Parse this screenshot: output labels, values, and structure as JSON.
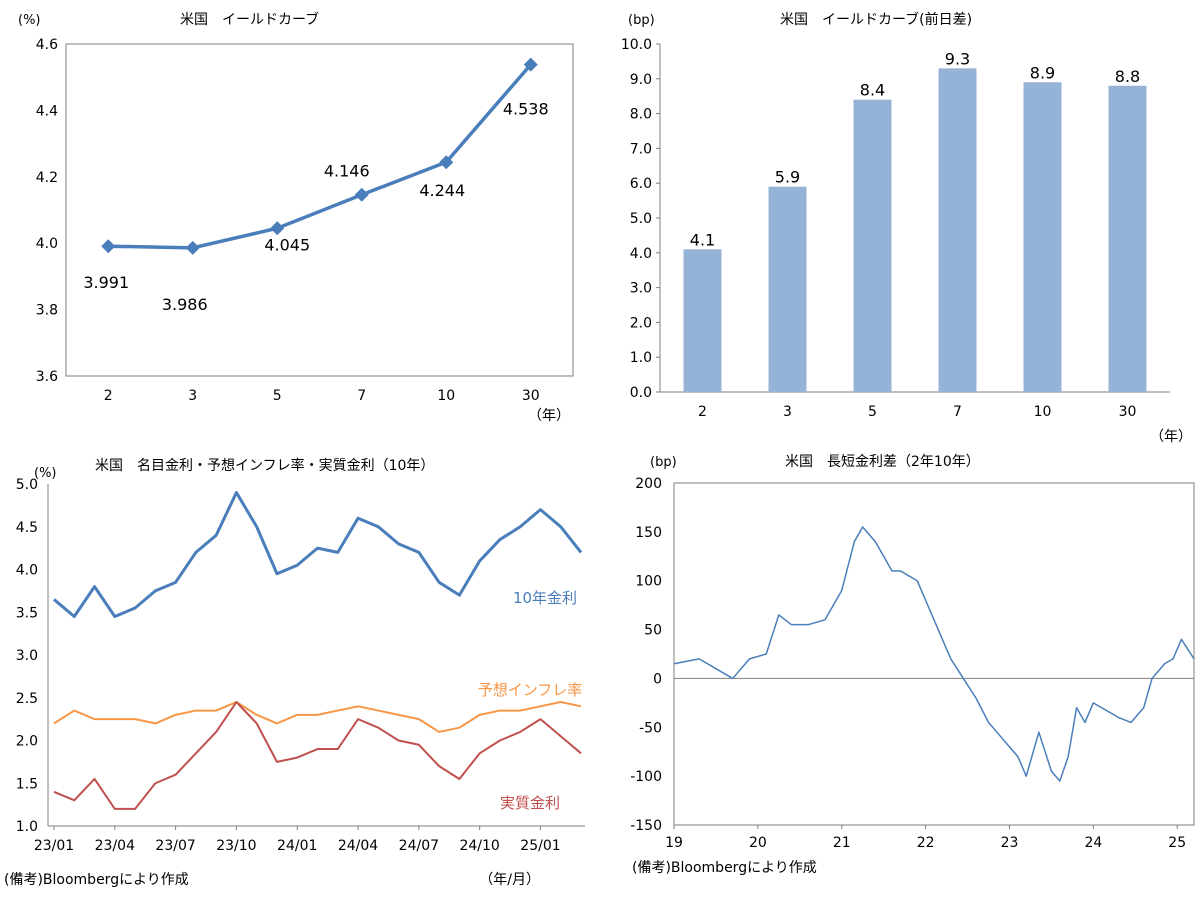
{
  "panels": {
    "yield_curve": {
      "title": "米国　イールドカーブ",
      "unit": "(%)",
      "x_unit": "（年）"
    },
    "yield_change": {
      "title": "米国　イールドカーブ(前日差)",
      "unit": "(bp)",
      "x_unit": "（年）"
    },
    "rates": {
      "title": "米国　名目金利・予想インフレ率・実質金利（10年）",
      "unit": "(%)",
      "x_unit": "（年/月）",
      "source": "(備考)Bloombergにより作成"
    },
    "spread": {
      "title": "米国　長短金利差（2年10年）",
      "unit": "(bp)",
      "source": "(備考)Bloombergにより作成"
    }
  },
  "chart_data": [
    {
      "id": "yield_curve",
      "type": "line",
      "categories": [
        "2",
        "3",
        "5",
        "7",
        "10",
        "30"
      ],
      "series": [
        {
          "values": [
            3.991,
            3.986,
            4.045,
            4.146,
            4.244,
            4.538
          ],
          "color": "#4a7ebb"
        }
      ],
      "data_labels": [
        "3.991",
        "3.986",
        "4.045",
        "4.146",
        "4.244",
        "4.538"
      ],
      "ylim": [
        3.6,
        4.6
      ],
      "yticks": [
        "3.6",
        "3.8",
        "4.0",
        "4.2",
        "4.4",
        "4.6"
      ],
      "grid": false
    },
    {
      "id": "yield_change",
      "type": "bar",
      "categories": [
        "2",
        "3",
        "5",
        "7",
        "10",
        "30"
      ],
      "values": [
        4.1,
        5.9,
        8.4,
        9.3,
        8.9,
        8.8
      ],
      "data_labels": [
        "4.1",
        "5.9",
        "8.4",
        "9.3",
        "8.9",
        "8.8"
      ],
      "bar_color": "#95b3d7",
      "ylim": [
        0,
        10
      ],
      "yticks": [
        "0.0",
        "1.0",
        "2.0",
        "3.0",
        "4.0",
        "5.0",
        "6.0",
        "7.0",
        "8.0",
        "9.0",
        "10.0"
      ],
      "grid": false
    },
    {
      "id": "rates",
      "type": "line",
      "x_range": [
        "2023-01",
        "2025-03"
      ],
      "xticks": [
        "23/01",
        "23/04",
        "23/07",
        "23/10",
        "24/01",
        "24/04",
        "24/07",
        "24/10",
        "25/01"
      ],
      "ylim": [
        1.0,
        5.0
      ],
      "yticks": [
        "1.0",
        "1.5",
        "2.0",
        "2.5",
        "3.0",
        "3.5",
        "4.0",
        "4.5",
        "5.0"
      ],
      "grid": false,
      "series": [
        {
          "name": "10年金利",
          "color": "#4a7ebb",
          "points": [
            [
              "2023-01",
              3.65
            ],
            [
              "2023-02",
              3.45
            ],
            [
              "2023-03",
              3.8
            ],
            [
              "2023-04",
              3.45
            ],
            [
              "2023-05",
              3.55
            ],
            [
              "2023-06",
              3.75
            ],
            [
              "2023-07",
              3.85
            ],
            [
              "2023-08",
              4.2
            ],
            [
              "2023-09",
              4.4
            ],
            [
              "2023-10",
              4.9
            ],
            [
              "2023-11",
              4.5
            ],
            [
              "2023-12",
              3.95
            ],
            [
              "2024-01",
              4.05
            ],
            [
              "2024-02",
              4.25
            ],
            [
              "2024-03",
              4.2
            ],
            [
              "2024-04",
              4.6
            ],
            [
              "2024-05",
              4.5
            ],
            [
              "2024-06",
              4.3
            ],
            [
              "2024-07",
              4.2
            ],
            [
              "2024-08",
              3.85
            ],
            [
              "2024-09",
              3.7
            ],
            [
              "2024-10",
              4.1
            ],
            [
              "2024-11",
              4.35
            ],
            [
              "2024-12",
              4.5
            ],
            [
              "2025-01",
              4.7
            ],
            [
              "2025-02",
              4.5
            ],
            [
              "2025-03",
              4.2
            ]
          ]
        },
        {
          "name": "予想インフレ率",
          "color": "#f79646",
          "points": [
            [
              "2023-01",
              2.2
            ],
            [
              "2023-02",
              2.35
            ],
            [
              "2023-03",
              2.25
            ],
            [
              "2023-04",
              2.25
            ],
            [
              "2023-05",
              2.25
            ],
            [
              "2023-06",
              2.2
            ],
            [
              "2023-07",
              2.3
            ],
            [
              "2023-08",
              2.35
            ],
            [
              "2023-09",
              2.35
            ],
            [
              "2023-10",
              2.45
            ],
            [
              "2023-11",
              2.3
            ],
            [
              "2023-12",
              2.2
            ],
            [
              "2024-01",
              2.3
            ],
            [
              "2024-02",
              2.3
            ],
            [
              "2024-03",
              2.35
            ],
            [
              "2024-04",
              2.4
            ],
            [
              "2024-05",
              2.35
            ],
            [
              "2024-06",
              2.3
            ],
            [
              "2024-07",
              2.25
            ],
            [
              "2024-08",
              2.1
            ],
            [
              "2024-09",
              2.15
            ],
            [
              "2024-10",
              2.3
            ],
            [
              "2024-11",
              2.35
            ],
            [
              "2024-12",
              2.35
            ],
            [
              "2025-01",
              2.4
            ],
            [
              "2025-02",
              2.45
            ],
            [
              "2025-03",
              2.4
            ]
          ]
        },
        {
          "name": "実質金利",
          "color": "#c0504d",
          "points": [
            [
              "2023-01",
              1.4
            ],
            [
              "2023-02",
              1.3
            ],
            [
              "2023-03",
              1.55
            ],
            [
              "2023-04",
              1.2
            ],
            [
              "2023-05",
              1.2
            ],
            [
              "2023-06",
              1.5
            ],
            [
              "2023-07",
              1.6
            ],
            [
              "2023-08",
              1.85
            ],
            [
              "2023-09",
              2.1
            ],
            [
              "2023-10",
              2.45
            ],
            [
              "2023-11",
              2.2
            ],
            [
              "2023-12",
              1.75
            ],
            [
              "2024-01",
              1.8
            ],
            [
              "2024-02",
              1.9
            ],
            [
              "2024-03",
              1.9
            ],
            [
              "2024-04",
              2.25
            ],
            [
              "2024-05",
              2.15
            ],
            [
              "2024-06",
              2.0
            ],
            [
              "2024-07",
              1.95
            ],
            [
              "2024-08",
              1.7
            ],
            [
              "2024-09",
              1.55
            ],
            [
              "2024-10",
              1.85
            ],
            [
              "2024-11",
              2.0
            ],
            [
              "2024-12",
              2.1
            ],
            [
              "2025-01",
              2.25
            ],
            [
              "2025-02",
              2.05
            ],
            [
              "2025-03",
              1.85
            ]
          ]
        }
      ]
    },
    {
      "id": "spread",
      "type": "line",
      "x_range": [
        2019,
        2025.2
      ],
      "xticks": [
        "19",
        "20",
        "21",
        "22",
        "23",
        "24",
        "25"
      ],
      "ylim": [
        -150,
        200
      ],
      "yticks": [
        "200",
        "150",
        "100",
        "50",
        "0",
        "-50",
        "-100",
        "-150"
      ],
      "grid": false,
      "series": [
        {
          "color": "#4a7ebb",
          "points": [
            [
              2019.0,
              15
            ],
            [
              2019.3,
              20
            ],
            [
              2019.6,
              5
            ],
            [
              2019.7,
              0
            ],
            [
              2019.9,
              20
            ],
            [
              2020.1,
              25
            ],
            [
              2020.25,
              65
            ],
            [
              2020.4,
              55
            ],
            [
              2020.6,
              55
            ],
            [
              2020.8,
              60
            ],
            [
              2021.0,
              90
            ],
            [
              2021.15,
              140
            ],
            [
              2021.25,
              155
            ],
            [
              2021.4,
              140
            ],
            [
              2021.6,
              110
            ],
            [
              2021.7,
              110
            ],
            [
              2021.9,
              100
            ],
            [
              2022.0,
              80
            ],
            [
              2022.2,
              40
            ],
            [
              2022.3,
              20
            ],
            [
              2022.45,
              0
            ],
            [
              2022.6,
              -20
            ],
            [
              2022.75,
              -45
            ],
            [
              2022.9,
              -60
            ],
            [
              2023.0,
              -70
            ],
            [
              2023.1,
              -80
            ],
            [
              2023.2,
              -100
            ],
            [
              2023.35,
              -55
            ],
            [
              2023.5,
              -95
            ],
            [
              2023.6,
              -105
            ],
            [
              2023.7,
              -80
            ],
            [
              2023.8,
              -30
            ],
            [
              2023.9,
              -45
            ],
            [
              2024.0,
              -25
            ],
            [
              2024.2,
              -35
            ],
            [
              2024.3,
              -40
            ],
            [
              2024.45,
              -45
            ],
            [
              2024.6,
              -30
            ],
            [
              2024.7,
              0
            ],
            [
              2024.85,
              15
            ],
            [
              2024.95,
              20
            ],
            [
              2025.05,
              40
            ],
            [
              2025.2,
              20
            ]
          ]
        }
      ]
    }
  ]
}
